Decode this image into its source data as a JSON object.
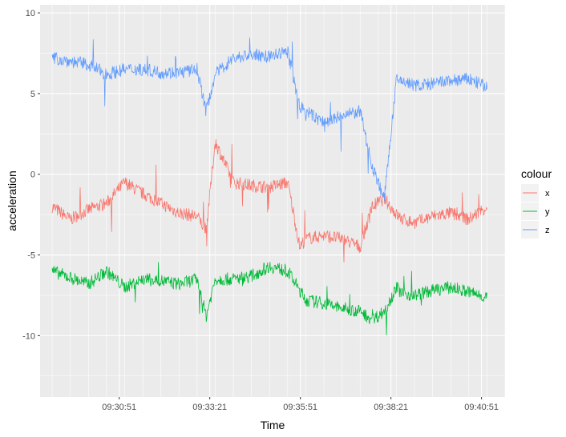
{
  "chart_data": {
    "type": "line",
    "xlabel": "Time",
    "ylabel": "acceleration",
    "x_ticks": [
      "09:30:51",
      "09:33:21",
      "09:35:51",
      "09:38:21",
      "09:40:51"
    ],
    "x_range": [
      "09:28:40",
      "09:41:30"
    ],
    "y_ticks": [
      -10,
      -5,
      0,
      5,
      10
    ],
    "ylim": [
      -13.8,
      10.5
    ],
    "grid": true,
    "legend": {
      "title": "colour",
      "placement": "right"
    },
    "x": [
      "09:29:00",
      "09:29:30",
      "09:30:00",
      "09:30:30",
      "09:31:00",
      "09:31:30",
      "09:32:00",
      "09:32:30",
      "09:33:00",
      "09:33:15",
      "09:33:30",
      "09:34:00",
      "09:34:30",
      "09:35:00",
      "09:35:30",
      "09:35:50",
      "09:36:00",
      "09:36:30",
      "09:37:00",
      "09:37:30",
      "09:37:50",
      "09:38:10",
      "09:38:30",
      "09:38:40",
      "09:39:00",
      "09:39:30",
      "09:40:00",
      "09:40:30",
      "09:41:00"
    ],
    "series": [
      {
        "name": "x",
        "color": "#F8766D",
        "values": [
          -2.0,
          -2.8,
          -2.2,
          -1.8,
          -0.5,
          -1.2,
          -1.8,
          -2.4,
          -2.6,
          -3.5,
          2.0,
          -0.5,
          -0.7,
          -0.8,
          -0.5,
          -4.5,
          -4.0,
          -3.8,
          -4.0,
          -4.5,
          -2.0,
          -1.5,
          -2.5,
          -2.8,
          -3.0,
          -2.6,
          -2.4,
          -2.8,
          -2.0
        ]
      },
      {
        "name": "y",
        "color": "#00BA38",
        "values": [
          -6.0,
          -6.4,
          -6.8,
          -6.0,
          -7.0,
          -6.5,
          -6.6,
          -6.8,
          -6.5,
          -8.8,
          -6.5,
          -6.5,
          -6.3,
          -5.7,
          -6.0,
          -7.2,
          -7.8,
          -8.0,
          -8.3,
          -8.5,
          -9.0,
          -8.5,
          -7.0,
          -7.4,
          -7.5,
          -7.2,
          -7.0,
          -7.3,
          -7.6
        ]
      },
      {
        "name": "z",
        "color": "#619CFF",
        "values": [
          7.2,
          7.0,
          6.8,
          6.2,
          6.5,
          6.5,
          6.3,
          6.3,
          6.5,
          3.9,
          6.2,
          7.2,
          7.4,
          7.3,
          7.6,
          4.2,
          3.9,
          3.2,
          3.6,
          3.9,
          0.5,
          -1.5,
          5.8,
          5.8,
          5.5,
          5.6,
          5.8,
          5.9,
          5.4
        ]
      }
    ]
  }
}
